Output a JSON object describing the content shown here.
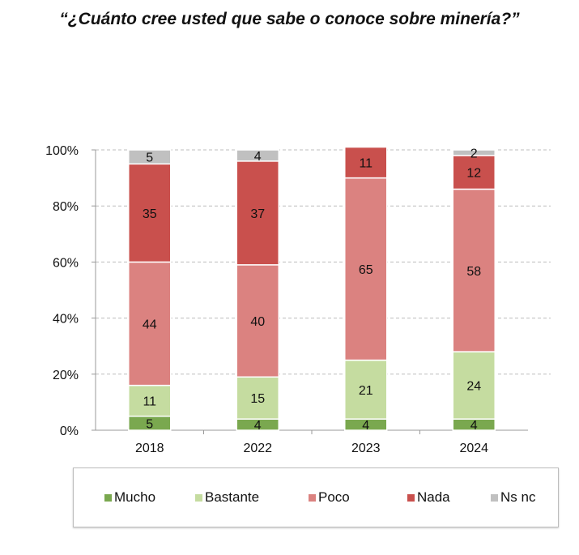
{
  "chart_data": {
    "type": "bar",
    "stacked": true,
    "title": "“¿Cuánto cree usted que sabe o conoce sobre minería?”",
    "categories": [
      "2018",
      "2022",
      "2023",
      "2024"
    ],
    "series": [
      {
        "name": "Mucho",
        "color": "#7aa84f",
        "values": [
          5,
          4,
          4,
          4
        ]
      },
      {
        "name": "Bastante",
        "color": "#c5dca0",
        "values": [
          11,
          15,
          21,
          24
        ]
      },
      {
        "name": "Poco",
        "color": "#db8280",
        "values": [
          44,
          40,
          65,
          58
        ]
      },
      {
        "name": "Nada",
        "color": "#c9504d",
        "values": [
          35,
          37,
          11,
          12
        ]
      },
      {
        "name": "Ns nc",
        "color": "#c0c0c0",
        "values": [
          5,
          4,
          null,
          2
        ]
      }
    ],
    "yticks": [
      "0%",
      "20%",
      "40%",
      "60%",
      "80%",
      "100%"
    ],
    "ylim": [
      0,
      100
    ],
    "grid": true,
    "legend_position": "bottom"
  }
}
